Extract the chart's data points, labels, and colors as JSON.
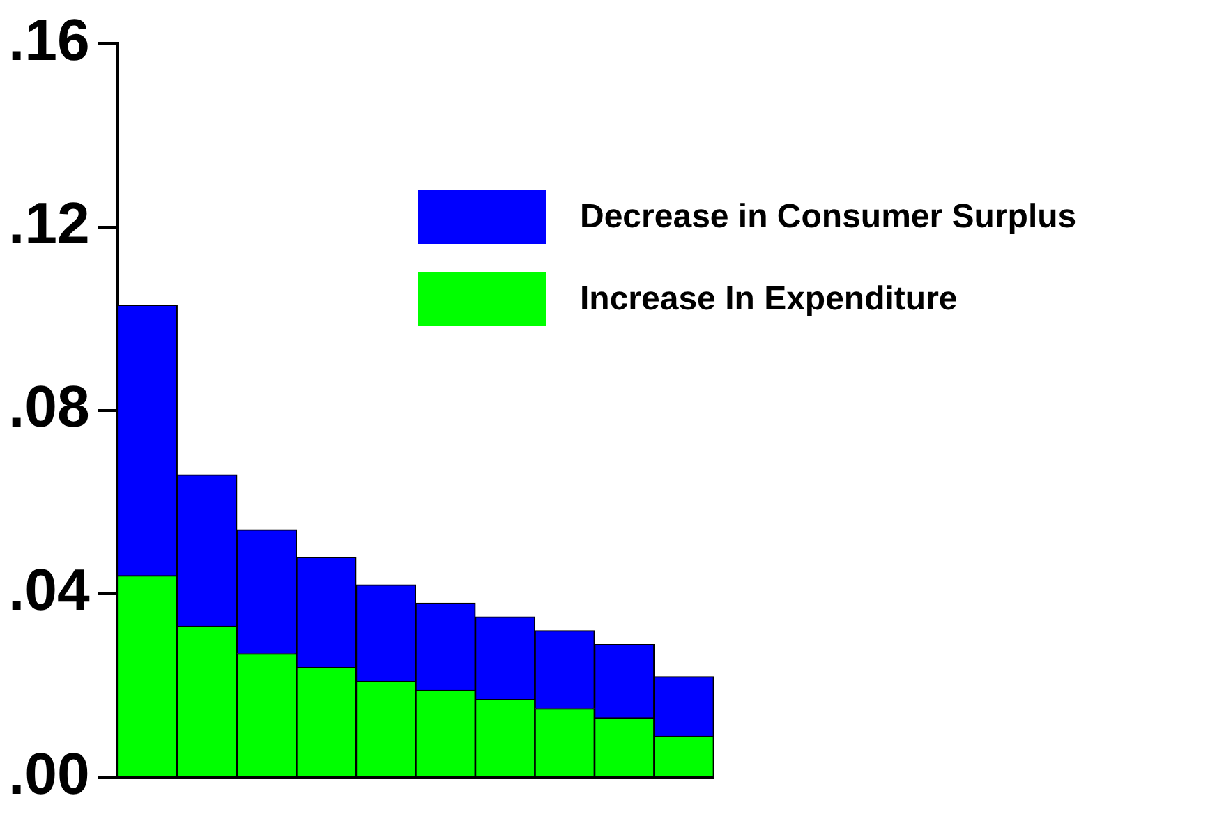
{
  "chart_data": {
    "type": "bar",
    "stacked": true,
    "categories": [
      null,
      null,
      null,
      null,
      null,
      null,
      null,
      null,
      null,
      null
    ],
    "series": [
      {
        "name": "Increase In Expenditure",
        "color": "#00ff00",
        "values": [
          0.044,
          0.033,
          0.027,
          0.024,
          0.021,
          0.019,
          0.017,
          0.015,
          0.013,
          0.009
        ]
      },
      {
        "name": "Decrease in Consumer Surplus",
        "color": "#0000ff",
        "values": [
          0.059,
          0.033,
          0.027,
          0.024,
          0.021,
          0.019,
          0.018,
          0.017,
          0.016,
          0.013
        ]
      }
    ],
    "ylim": [
      0,
      0.16
    ],
    "yticks": [
      {
        "value": 0,
        "label": ".00"
      },
      {
        "value": 0.04,
        "label": ".04"
      },
      {
        "value": 0.08,
        "label": ".08"
      },
      {
        "value": 0.12,
        "label": ".12"
      },
      {
        "value": 0.16,
        "label": ".16"
      }
    ],
    "grid": false,
    "legend": "top right"
  }
}
